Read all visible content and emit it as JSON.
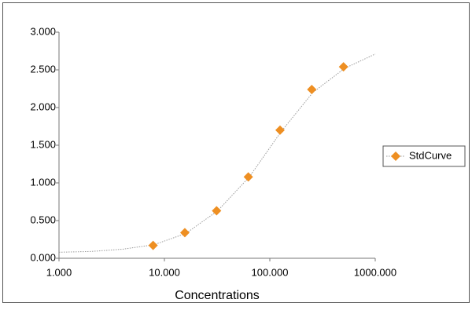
{
  "chart_data": {
    "type": "scatter",
    "x_label": "Concentrations",
    "x_scale": "log",
    "xlim": [
      1,
      1000
    ],
    "xticks": [
      {
        "value": 1,
        "label": "1.000"
      },
      {
        "value": 10,
        "label": "10.000"
      },
      {
        "value": 100,
        "label": "100.000"
      },
      {
        "value": 1000,
        "label": "1000.000"
      }
    ],
    "ylim": [
      0,
      3
    ],
    "yticks": [
      {
        "value": 0,
        "label": "0.000"
      },
      {
        "value": 0.5,
        "label": "0.500"
      },
      {
        "value": 1,
        "label": "1.000"
      },
      {
        "value": 1.5,
        "label": "1.500"
      },
      {
        "value": 2,
        "label": "2.000"
      },
      {
        "value": 2.5,
        "label": "2.500"
      },
      {
        "value": 3,
        "label": "3.000"
      }
    ],
    "grid": false,
    "legend": "right",
    "series": [
      {
        "name": "StdCurve",
        "color": "#ee8f22",
        "x": [
          7.8125,
          15.625,
          31.25,
          62.5,
          125,
          250,
          500
        ],
        "values": [
          0.17,
          0.34,
          0.63,
          1.08,
          1.7,
          2.24,
          2.54
        ]
      }
    ],
    "fit": {
      "color": "#9a9a9a",
      "x": [
        1,
        2,
        4,
        8,
        16,
        32,
        64,
        128,
        256,
        512,
        1000
      ],
      "values": [
        0.08,
        0.09,
        0.12,
        0.18,
        0.33,
        0.63,
        1.08,
        1.68,
        2.2,
        2.52,
        2.71
      ]
    }
  }
}
